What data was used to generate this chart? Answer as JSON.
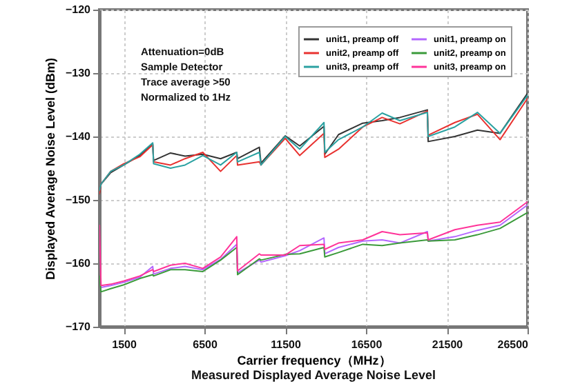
{
  "chart_data": {
    "type": "line",
    "xlabel": "Carrier frequency（MHz）",
    "ylabel": "Displayed Average Noise Level (dBm)",
    "annotations": [
      "Attenuation=0dB",
      "Sample Detector",
      "Trace average >50",
      "Normalized to 1Hz",
      "Measured Displayed Average Noise Level"
    ],
    "x": [
      0,
      100,
      700,
      1500,
      2500,
      3300,
      3350,
      4400,
      5300,
      6400,
      7500,
      8500,
      8550,
      9900,
      10000,
      11500,
      12400,
      13900,
      13950,
      14800,
      16300,
      17500,
      18600,
      20300,
      20350,
      22000,
      23400,
      24800,
      26500
    ],
    "series": [
      {
        "name": "unit1, preamp off",
        "color": "#333333",
        "values": [
          -149,
          -147.5,
          -145.7,
          -144.5,
          -143,
          -141.2,
          -143.8,
          -142.6,
          -143.1,
          -142.8,
          -143.5,
          -142.5,
          -143.5,
          -141.7,
          -144.2,
          -139.9,
          -141.5,
          -138.4,
          -142.8,
          -139.7,
          -137.9,
          -137.5,
          -137,
          -135.8,
          -140.8,
          -140,
          -139,
          -139.5,
          -133.2
        ]
      },
      {
        "name": "unit2, preamp off",
        "color": "#e8312f",
        "values": [
          -149,
          -147.5,
          -145.5,
          -144.3,
          -143.2,
          -141.3,
          -144,
          -144.5,
          -143.5,
          -142.5,
          -145.5,
          -143,
          -144.5,
          -144,
          -144.5,
          -140.3,
          -143,
          -139.5,
          -143.3,
          -142,
          -138.5,
          -137,
          -138,
          -136,
          -139.8,
          -137.8,
          -136.5,
          -140.5,
          -134
        ]
      },
      {
        "name": "unit3, preamp off",
        "color": "#2aa1a1",
        "values": [
          -148.5,
          -147.5,
          -145.5,
          -144.5,
          -142.8,
          -141,
          -144.3,
          -145,
          -144.5,
          -143,
          -144.5,
          -142.5,
          -144,
          -142.5,
          -144.5,
          -140,
          -142,
          -137.8,
          -142.5,
          -140.5,
          -138.5,
          -136.3,
          -137.5,
          -136.2,
          -140,
          -138.5,
          -136.2,
          -139.5,
          -133.5
        ]
      },
      {
        "name": "unit1, preamp on",
        "color": "#b366ff",
        "values": [
          null,
          -163.8,
          -163.5,
          -163,
          -162.2,
          -160.5,
          -161.7,
          -160.8,
          -160.5,
          -161,
          -159.4,
          -157,
          -161.5,
          -159.5,
          -159.8,
          -158.8,
          -158,
          -156,
          -158.5,
          -157.5,
          -156.5,
          -156.3,
          -156.8,
          -155,
          -156.5,
          -155.8,
          -154.8,
          -154,
          -150.8
        ]
      },
      {
        "name": "unit2, preamp on",
        "color": "#3a9a3a",
        "values": [
          -162,
          -164.5,
          -164,
          -163.4,
          -162.4,
          -161.8,
          -162,
          -161,
          -161,
          -161.3,
          -159.5,
          -157.5,
          -161.8,
          -159.3,
          -159.5,
          -158.6,
          -158.5,
          -157.5,
          -159,
          -158.3,
          -157,
          -157.2,
          -156.8,
          -156.3,
          -156.5,
          -156.3,
          -155.5,
          -154.5,
          -152
        ]
      },
      {
        "name": "unit3, preamp on",
        "color": "#ff3399",
        "values": [
          -154,
          -163.5,
          -163.3,
          -162.8,
          -162,
          -161,
          -161.3,
          -160.3,
          -160,
          -160.8,
          -159,
          -155.8,
          -161.2,
          -158.5,
          -158.7,
          -158.7,
          -157.2,
          -157,
          -157.8,
          -156.8,
          -156.3,
          -155,
          -155.5,
          -155.2,
          -156.3,
          -154.7,
          -154,
          -153.5,
          -150.3
        ]
      }
    ],
    "xlim": [
      0,
      26500
    ],
    "xticks": [
      1500,
      6500,
      11500,
      16500,
      21500,
      26500
    ],
    "ylim": [
      -170,
      -120
    ],
    "yticks": [
      -170,
      -160,
      -150,
      -140,
      -130,
      -120
    ],
    "grid": true,
    "legend": "top right",
    "line_style": "solid"
  }
}
